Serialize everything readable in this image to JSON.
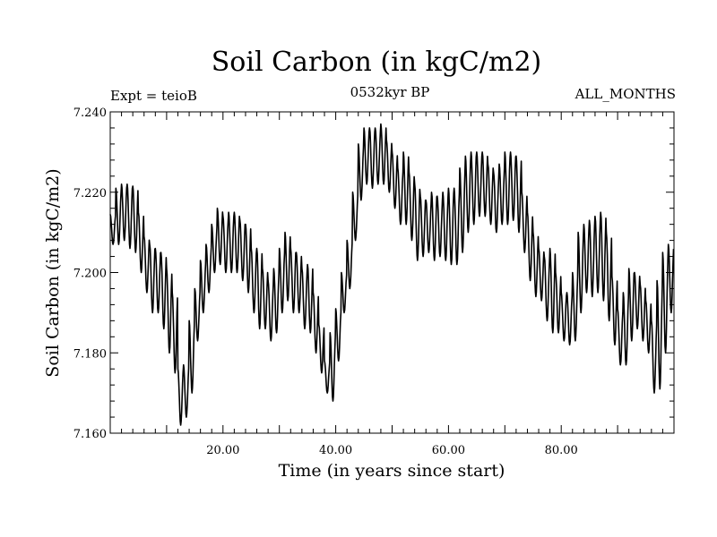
{
  "header": {
    "title": "Soil Carbon (in kgC/m2)",
    "experiment": "Expt = teioB",
    "period": "0532kyr BP",
    "months": "ALL_MONTHS"
  },
  "colors": {
    "line": "#000000",
    "background": "#ffffff"
  },
  "chart_data": {
    "type": "line",
    "title": "Soil Carbon (in kgC/m2)",
    "xlabel": "Time (in years since start)",
    "ylabel": "Soil Carbon (in kgC/m2)",
    "xlim": [
      0,
      100
    ],
    "ylim": [
      7.16,
      7.24
    ],
    "xticks": [
      20,
      40,
      60,
      80
    ],
    "xtick_labels": [
      "20.00",
      "40.00",
      "60.00",
      "80.00"
    ],
    "yticks": [
      7.16,
      7.18,
      7.2,
      7.22,
      7.24
    ],
    "ytick_labels": [
      "7.160",
      "7.180",
      "7.200",
      "7.220",
      "7.240"
    ],
    "grid": false,
    "seasonal_cycle_per_year": true,
    "series": [
      {
        "name": "Soil Carbon",
        "description": "monthly values; each year peaks near max and dips near min",
        "x": [
          0,
          1,
          2,
          3,
          4,
          5,
          6,
          7,
          8,
          9,
          10,
          11,
          12,
          13,
          14,
          15,
          16,
          17,
          18,
          19,
          20,
          21,
          22,
          23,
          24,
          25,
          26,
          27,
          28,
          29,
          30,
          31,
          32,
          33,
          34,
          35,
          36,
          37,
          38,
          39,
          40,
          41,
          42,
          43,
          44,
          45,
          46,
          47,
          48,
          49,
          50,
          51,
          52,
          53,
          54,
          55,
          56,
          57,
          58,
          59,
          60,
          61,
          62,
          63,
          64,
          65,
          66,
          67,
          68,
          69,
          70,
          71,
          72,
          73,
          74,
          75,
          76,
          77,
          78,
          79,
          80,
          81,
          82,
          83,
          84,
          85,
          86,
          87,
          88,
          89,
          90,
          91,
          92,
          93,
          94,
          95,
          96,
          97,
          98,
          99
        ],
        "annual_max": [
          7.2145,
          7.221,
          7.222,
          7.222,
          7.2215,
          7.215,
          7.209,
          7.207,
          7.206,
          7.205,
          7.201,
          7.195,
          7.176,
          7.177,
          7.188,
          7.196,
          7.203,
          7.207,
          7.212,
          7.216,
          7.214,
          7.215,
          7.215,
          7.213,
          7.212,
          7.206,
          7.206,
          7.201,
          7.198,
          7.201,
          7.206,
          7.21,
          7.206,
          7.205,
          7.201,
          7.202,
          7.195,
          7.187,
          7.178,
          7.185,
          7.191,
          7.2,
          7.208,
          7.22,
          7.232,
          7.236,
          7.236,
          7.236,
          7.237,
          7.233,
          7.23,
          7.226,
          7.23,
          7.225,
          7.222,
          7.219,
          7.218,
          7.22,
          7.219,
          7.22,
          7.221,
          7.221,
          7.226,
          7.229,
          7.23,
          7.23,
          7.23,
          7.227,
          7.225,
          7.227,
          7.23,
          7.23,
          7.229,
          7.22,
          7.215,
          7.21,
          7.206,
          7.204,
          7.206,
          7.2,
          7.195,
          7.195,
          7.2,
          7.21,
          7.212,
          7.213,
          7.214,
          7.215,
          7.21,
          7.199,
          7.191,
          7.195,
          7.201,
          7.2,
          7.197,
          7.193,
          7.188,
          7.198,
          7.205,
          7.207
        ],
        "annual_min": [
          7.207,
          7.207,
          7.208,
          7.206,
          7.205,
          7.2,
          7.195,
          7.19,
          7.19,
          7.186,
          7.18,
          7.175,
          7.162,
          7.164,
          7.17,
          7.183,
          7.19,
          7.195,
          7.2,
          7.202,
          7.2,
          7.2,
          7.2,
          7.198,
          7.195,
          7.19,
          7.186,
          7.186,
          7.183,
          7.185,
          7.19,
          7.193,
          7.19,
          7.19,
          7.186,
          7.185,
          7.18,
          7.175,
          7.17,
          7.168,
          7.178,
          7.19,
          7.196,
          7.208,
          7.218,
          7.222,
          7.221,
          7.222,
          7.222,
          7.22,
          7.216,
          7.212,
          7.212,
          7.208,
          7.203,
          7.204,
          7.205,
          7.203,
          7.204,
          7.203,
          7.202,
          7.202,
          7.205,
          7.21,
          7.212,
          7.214,
          7.214,
          7.212,
          7.21,
          7.212,
          7.212,
          7.213,
          7.21,
          7.205,
          7.198,
          7.194,
          7.193,
          7.188,
          7.185,
          7.185,
          7.183,
          7.182,
          7.183,
          7.19,
          7.195,
          7.194,
          7.195,
          7.193,
          7.188,
          7.182,
          7.177,
          7.177,
          7.183,
          7.186,
          7.183,
          7.18,
          7.17,
          7.171,
          7.18,
          7.19
        ]
      }
    ]
  }
}
